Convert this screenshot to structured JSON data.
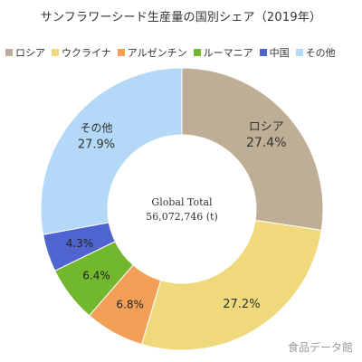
{
  "chart_data": {
    "type": "pie",
    "title": "サンフラワーシード生産量の国別シェア（2019年）",
    "categories": [
      "ロシア",
      "ウクライナ",
      "アルゼンチン",
      "ルーマニア",
      "中国",
      "その他"
    ],
    "values": [
      27.4,
      27.2,
      6.8,
      6.4,
      4.3,
      27.9
    ],
    "value_labels": [
      "27.4%",
      "27.2%",
      "6.8%",
      "6.4%",
      "4.3%",
      "27.9%"
    ],
    "colors": [
      "#bfae96",
      "#f0d97c",
      "#f2a057",
      "#72b82e",
      "#5064d0",
      "#b3d8f8"
    ],
    "legend_position": "top",
    "donut": true,
    "center_label": {
      "line1": "Global Total",
      "line2": "56,072,746 (t)"
    }
  },
  "watermark": "食品データ館"
}
